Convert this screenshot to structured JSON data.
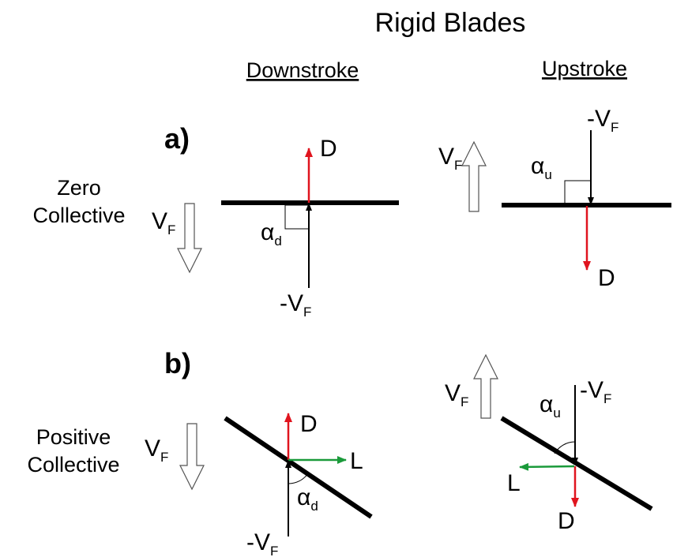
{
  "title": "Rigid Blades",
  "columns": [
    "Downstroke",
    "Upstroke"
  ],
  "rows": [
    {
      "label": "a)",
      "name": [
        "Zero",
        "Collective"
      ]
    },
    {
      "label": "b)",
      "name": [
        "Positive",
        "Collective"
      ]
    }
  ],
  "symbols": {
    "drag": "D",
    "lift": "L",
    "velocity": "V",
    "negative_velocity": "-V",
    "flow_subscript": "F",
    "angle": "α",
    "downstroke_subscript": "d",
    "upstroke_subscript": "u"
  }
}
